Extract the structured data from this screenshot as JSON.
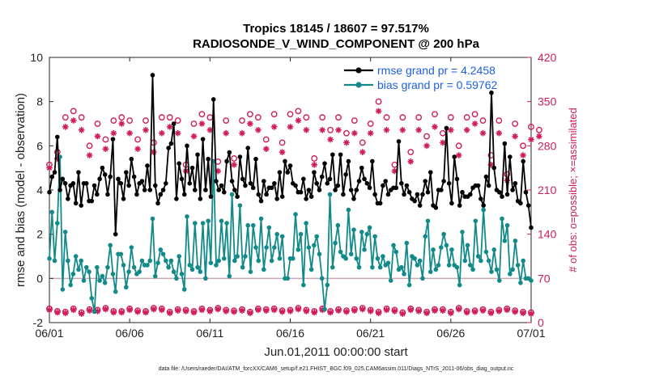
{
  "chart_data": {
    "type": "line",
    "title": "Tropics 18145 / 18607 = 97.517%",
    "subtitle": "RADIOSONDE_V_WIND_COMPONENT @ 200 hPa",
    "xlabel": "Jun.01,2011 00:00:00 start",
    "ylabel": "rmse and bias (model - observation)",
    "ylabel_right": "# of obs: o=possible; ×=assimilated",
    "footnote": "data file: /Users/raeder/DAI/ATM_forcXX/CAM6_setup/f.e21.FHIST_BGC.f09_025.CAM6assim.011/Diags_NTrS_2011-06/obs_diag_output.nc",
    "xlim": [
      0,
      30
    ],
    "ylim": [
      -2,
      10
    ],
    "ylim_right": [
      0,
      420
    ],
    "x_ticks": [
      0,
      5,
      10,
      15,
      20,
      25,
      30
    ],
    "x_tick_labels": [
      "06/01",
      "06/06",
      "06/11",
      "06/16",
      "06/21",
      "06/26",
      "07/01"
    ],
    "y_ticks": [
      -2,
      0,
      2,
      4,
      6,
      8,
      10
    ],
    "y_ticks_right": [
      0,
      70,
      140,
      210,
      280,
      350,
      420
    ],
    "zero_line": 0,
    "colors": {
      "rmse": "#000000",
      "bias": "#138a8a",
      "counts": "#d01c5b",
      "legend_text": "#1f5fe0",
      "zero": "#c8a8b8"
    },
    "legend": [
      "rmse grand pr = 4.2458",
      "bias grand pr = 0.59762"
    ],
    "series": [
      {
        "name": "rmse",
        "values": [
          3.9,
          4.6,
          4.8,
          6.4,
          4.0,
          4.5,
          4.3,
          3.6,
          4.2,
          4.3,
          3.4,
          4.8,
          3.3,
          4.3,
          4.3,
          3.5,
          3.5,
          4.2,
          3.8,
          4.5,
          5.0,
          4.7,
          3.8,
          4.6,
          6.3,
          2.0,
          4.5,
          4.3,
          3.6,
          4.8,
          4.2,
          5.4,
          4.6,
          3.8,
          4.3,
          4.4,
          4.0,
          5.1,
          4.0,
          9.2,
          4.2,
          3.4,
          3.8,
          4.0,
          4.3,
          5.9,
          6.1,
          7.0,
          3.6,
          5.2,
          4.5,
          3.8,
          6.0,
          4.3,
          5.0,
          4.0,
          5.6,
          3.6,
          6.3,
          4.0,
          5.4,
          3.7,
          8.1,
          4.4,
          4.0,
          4.2,
          3.9,
          5.3,
          5.7,
          4.4,
          4.0,
          3.7,
          5.5,
          4.5,
          4.2,
          5.9,
          4.3,
          4.1,
          5.4,
          3.8,
          3.5,
          4.4,
          3.8,
          4.1,
          4.1,
          4.3,
          3.6,
          4.8,
          3.7,
          5.3,
          4.8,
          5.1,
          4.3,
          4.2,
          3.9,
          3.9,
          4.5,
          3.6,
          4.0,
          3.7,
          4.8,
          4.3,
          4.0,
          4.6,
          5.2,
          4.3,
          4.5,
          5.6,
          4.0,
          4.2,
          5.6,
          3.8,
          4.7,
          5.3,
          4.0,
          3.6,
          4.0,
          4.4,
          5.0,
          4.5,
          4.3,
          4.1,
          5.3,
          3.8,
          3.4,
          3.4,
          4.2,
          4.4,
          3.8,
          4.0,
          4.1,
          4.1,
          6.2,
          4.3,
          3.8,
          4.2,
          3.9,
          3.6,
          3.5,
          3.8,
          3.3,
          3.8,
          4.4,
          3.9,
          4.8,
          3.3,
          3.2,
          4.0,
          4.0,
          4.4,
          6.8,
          4.3,
          3.4,
          5.5,
          4.5,
          3.3,
          3.9,
          3.7,
          3.7,
          3.8,
          4.1,
          4.2,
          4.2,
          3.6,
          3.3,
          4.6,
          4.2,
          8.4,
          5.0,
          4.0,
          3.9,
          3.7,
          6.1,
          3.8,
          5.5,
          4.0,
          4.3,
          3.5,
          3.4,
          5.3,
          3.9,
          3.3,
          2.3
        ]
      },
      {
        "name": "bias",
        "values": [
          0.9,
          3.0,
          0.8,
          2.5,
          5.5,
          -0.5,
          2.1,
          0.8,
          -0.3,
          0.2,
          1.0,
          0.4,
          0.8,
          -0.1,
          0.5,
          0.3,
          -0.9,
          -1.5,
          0.5,
          -0.1,
          0.1,
          -0.2,
          0.5,
          1.5,
          0.2,
          -0.6,
          1.1,
          1.1,
          0.6,
          -0.4,
          0.3,
          1.4,
          0.5,
          0.2,
          0.3,
          0.8,
          0.6,
          0.6,
          0.8,
          2.7,
          0.1,
          0.7,
          1.3,
          1.1,
          0.8,
          0.5,
          0.8,
          0.3,
          0.0,
          1.0,
          0.2,
          -0.5,
          2.8,
          0.6,
          0.4,
          2.5,
          0.5,
          0.3,
          2.5,
          0.0,
          2.6,
          0.7,
          5.3,
          0.6,
          0.8,
          2.6,
          0.9,
          2.5,
          0.1,
          3.8,
          0.8,
          1.0,
          3.3,
          0.5,
          1.0,
          2.4,
          0.3,
          2.4,
          1.4,
          0.8,
          2.7,
          0.4,
          1.4,
          2.3,
          0.8,
          1.4,
          2.0,
          0.9,
          1.9,
          0.0,
          0.0,
          0.9,
          0.9,
          2.9,
          1.3,
          2.0,
          -0.3,
          2.5,
          1.4,
          0.4,
          1.5,
          1.9,
          1.1,
          0.0,
          -1.4,
          -0.3,
          3.8,
          0.5,
          1.6,
          2.4,
          1.2,
          1.0,
          0.9,
          3.1,
          1.1,
          2.2,
          0.9,
          0.5,
          2.1,
          1.3,
          2.0,
          2.3,
          0.5,
          1.9,
          0.9,
          0.5,
          1.0,
          0.6,
          0.7,
          -0.1,
          1.5,
          1.2,
          0.4,
          0.5,
          0.2,
          1.6,
          -0.3,
          1.0,
          0.9,
          0.6,
          0.8,
          0.0,
          1.9,
          2.6,
          0.3,
          1.3,
          0.4,
          0.6,
          1.4,
          2.0,
          1.5,
          0.6,
          1.3,
          0.6,
          0.5,
          -0.3,
          2.1,
          0.8,
          1.5,
          0.6,
          0.4,
          2.6,
          1.0,
          0.8,
          3.1,
          1.2,
          0.8,
          0.3,
          1.3,
          0.4,
          -0.1,
          2.7,
          1.7,
          2.4,
          0.2,
          0.4,
          1.7,
          0.6,
          -0.2,
          0.8,
          0.0,
          0.0,
          -0.1
        ]
      }
    ],
    "obs_counts": {
      "x": [
        0,
        0.5,
        1,
        1.5,
        2,
        2.5,
        3,
        3.5,
        4,
        4.5,
        5,
        5.5,
        6,
        6.5,
        7,
        7.5,
        8,
        8.5,
        9,
        9.5,
        10,
        10.5,
        11,
        11.5,
        12,
        12.5,
        13,
        13.5,
        14,
        14.5,
        15,
        15.5,
        16,
        16.5,
        17,
        17.5,
        18,
        18.5,
        19,
        19.5,
        20,
        20.5,
        21,
        21.5,
        22,
        22.5,
        23,
        23.5,
        24,
        24.5,
        25,
        25.5,
        26,
        26.5,
        27,
        27.5,
        28,
        28.5,
        29,
        29.5,
        30
      ],
      "possible_00z": [
        250,
        325,
        325,
        315,
        320,
        320,
        320,
        325,
        320,
        315,
        325,
        320,
        320,
        325,
        330,
        330,
        325,
        325,
        325,
        320,
        315,
        325,
        325,
        325,
        330,
        325,
        325,
        320,
        320,
        315,
        310
      ],
      "assimilated_00z": [
        245,
        310,
        305,
        295,
        300,
        300,
        305,
        300,
        300,
        295,
        305,
        300,
        300,
        305,
        310,
        310,
        305,
        305,
        305,
        300,
        300,
        305,
        305,
        305,
        310,
        305,
        305,
        300,
        300,
        295,
        290
      ],
      "possible_12z": [
        270,
        335,
        280,
        290,
        325,
        290,
        285,
        325,
        250,
        330,
        255,
        260,
        330,
        290,
        285,
        335,
        260,
        305,
        300,
        285,
        350,
        250,
        270,
        295,
        300,
        280,
        330,
        265,
        235,
        280,
        305
      ],
      "assimilated_12z": [
        260,
        320,
        265,
        275,
        315,
        275,
        270,
        310,
        240,
        315,
        240,
        250,
        315,
        275,
        270,
        320,
        250,
        290,
        285,
        270,
        335,
        240,
        255,
        280,
        285,
        265,
        315,
        250,
        225,
        265,
        295
      ],
      "low_possible": [
        22,
        18,
        17,
        22,
        16,
        21,
        20,
        23,
        18,
        18,
        22,
        19,
        18,
        23,
        22,
        17,
        21,
        20,
        18,
        22,
        20,
        23,
        20,
        19,
        21,
        17,
        22,
        21,
        22,
        19,
        20,
        23,
        20,
        18,
        22,
        18,
        21,
        19,
        21,
        23,
        20,
        17,
        22,
        20,
        16,
        22,
        20,
        17,
        21,
        21,
        17,
        23,
        18,
        19,
        21,
        17,
        20,
        22,
        19,
        17,
        16
      ],
      "low_assimilated": [
        20,
        16,
        15,
        20,
        14,
        19,
        18,
        21,
        16,
        16,
        20,
        17,
        16,
        21,
        20,
        15,
        19,
        18,
        16,
        20,
        18,
        21,
        18,
        17,
        19,
        15,
        20,
        19,
        20,
        17,
        18,
        21,
        18,
        16,
        20,
        16,
        19,
        17,
        19,
        21,
        18,
        15,
        20,
        18,
        14,
        20,
        18,
        15,
        19,
        19,
        15,
        21,
        16,
        17,
        19,
        15,
        18,
        20,
        17,
        15,
        14
      ]
    }
  }
}
